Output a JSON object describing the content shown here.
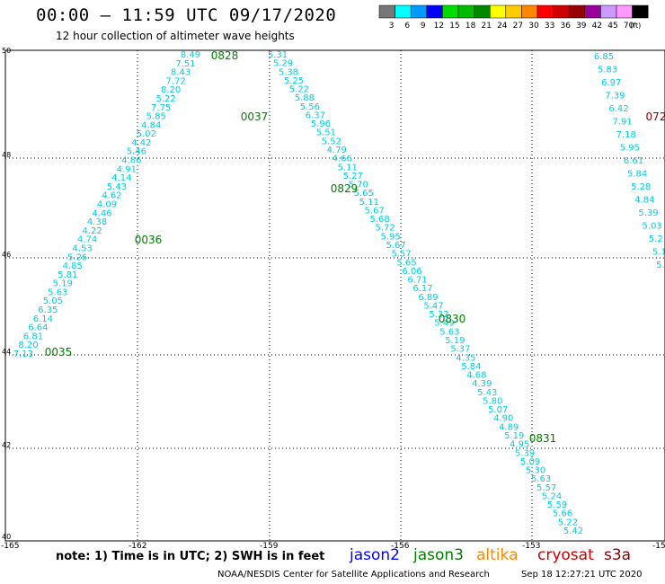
{
  "header": {
    "title": "00:00 – 11:59 UTC 09/17/2020",
    "subtitle": "12 hour collection of altimeter wave heights"
  },
  "legend": {
    "unit": "(ft)",
    "bins": [
      {
        "label": "3",
        "color": "#777777"
      },
      {
        "label": "6",
        "color": "#00ffff"
      },
      {
        "label": "9",
        "color": "#0099ff"
      },
      {
        "label": "12",
        "color": "#0000ff"
      },
      {
        "label": "15",
        "color": "#00dd00"
      },
      {
        "label": "18",
        "color": "#00bb00"
      },
      {
        "label": "21",
        "color": "#008800"
      },
      {
        "label": "24",
        "color": "#ffff00"
      },
      {
        "label": "27",
        "color": "#ffcc00"
      },
      {
        "label": "30",
        "color": "#ff8800"
      },
      {
        "label": "33",
        "color": "#ff0000"
      },
      {
        "label": "36",
        "color": "#cc0000"
      },
      {
        "label": "39",
        "color": "#990000"
      },
      {
        "label": "42",
        "color": "#990099"
      },
      {
        "label": "45",
        "color": "#cc99ff"
      },
      {
        "label": "70",
        "color": "#ff99ff"
      },
      {
        "label": "",
        "color": "#000000"
      }
    ]
  },
  "axes": {
    "lat_labels": [
      "50",
      "48",
      "46",
      "44",
      "42",
      "40"
    ],
    "lon_labels": [
      "-165",
      "-162",
      "-159",
      "-156",
      "-153",
      "-150"
    ]
  },
  "colors": {
    "swh": "#00d0e0",
    "time_jason3": "#008000",
    "time_cryosat": "#8b0000"
  },
  "tracks": {
    "asc": [
      "8.49",
      "7.51",
      "8.43",
      "7.72",
      "8.20",
      "5.22",
      "7.75",
      "5.85",
      "4.84",
      "5.02",
      "4.42",
      "5.46",
      "4.86",
      "4.91",
      "4.14",
      "5.43",
      "4.62",
      "4.09",
      "4.46",
      "4.38",
      "4.22",
      "4.74",
      "4.53",
      "5.26",
      "4.85",
      "5.81",
      "5.19",
      "5.63",
      "5.05",
      "6.35",
      "6.14",
      "6.64",
      "6.81",
      "8.20",
      "7.13"
    ],
    "desc": [
      "5.31",
      "5.29",
      "5.38",
      "5.25",
      "5.22",
      "5.88",
      "5.56",
      "6.37",
      "5.96",
      "5.51",
      "5.52",
      "4.79",
      "4.66",
      "5.11",
      "5.27",
      "5.70",
      "5.65",
      "5.11",
      "5.67",
      "5.68",
      "5.72",
      "5.95",
      "5.67",
      "5.57",
      "5.65",
      "6.06",
      "6.71",
      "6.17",
      "6.89",
      "5.47",
      "5.32",
      "5.49",
      "5.63",
      "5.19",
      "5.37",
      "4.35",
      "5.84",
      "4.68",
      "4.39",
      "5.43",
      "5.80",
      "5.07",
      "4.90",
      "4.89",
      "5.19",
      "4.95",
      "5.39",
      "5.09",
      "5.30",
      "5.63",
      "5.57",
      "5.24",
      "5.59",
      "5.66",
      "5.22",
      "5.42"
    ],
    "right": [
      "6.85",
      "5.83",
      "6.97",
      "7.39",
      "6.42",
      "7.91",
      "7.18",
      "5.95",
      "6.61",
      "5.84",
      "5.28",
      "4.84",
      "5.39",
      "5.03",
      "5.2",
      "5.1",
      "5.0"
    ]
  },
  "times": [
    {
      "label": "0828",
      "sat": "jason3"
    },
    {
      "label": "0037",
      "sat": "jason3"
    },
    {
      "label": "0829",
      "sat": "jason3"
    },
    {
      "label": "0036",
      "sat": "jason3"
    },
    {
      "label": "0830",
      "sat": "jason3"
    },
    {
      "label": "0035",
      "sat": "jason3"
    },
    {
      "label": "0831",
      "sat": "jason3"
    },
    {
      "label": "072",
      "sat": "cryosat"
    }
  ],
  "footer": {
    "note": "note: 1) Time is in UTC; 2) SWH is in feet",
    "satellites": [
      {
        "name": "jason2",
        "color": "#0000ff"
      },
      {
        "name": "jason3",
        "color": "#008000"
      },
      {
        "name": "altika",
        "color": "#ff8800"
      },
      {
        "name": "cryosat",
        "color": "#cc0000"
      },
      {
        "name": "s3a",
        "color": "#880000"
      }
    ],
    "credit": "NOAA/NESDIS Center for Satellite Applications and Research",
    "timestamp": "Sep 18 12:27:21 UTC 2020"
  }
}
